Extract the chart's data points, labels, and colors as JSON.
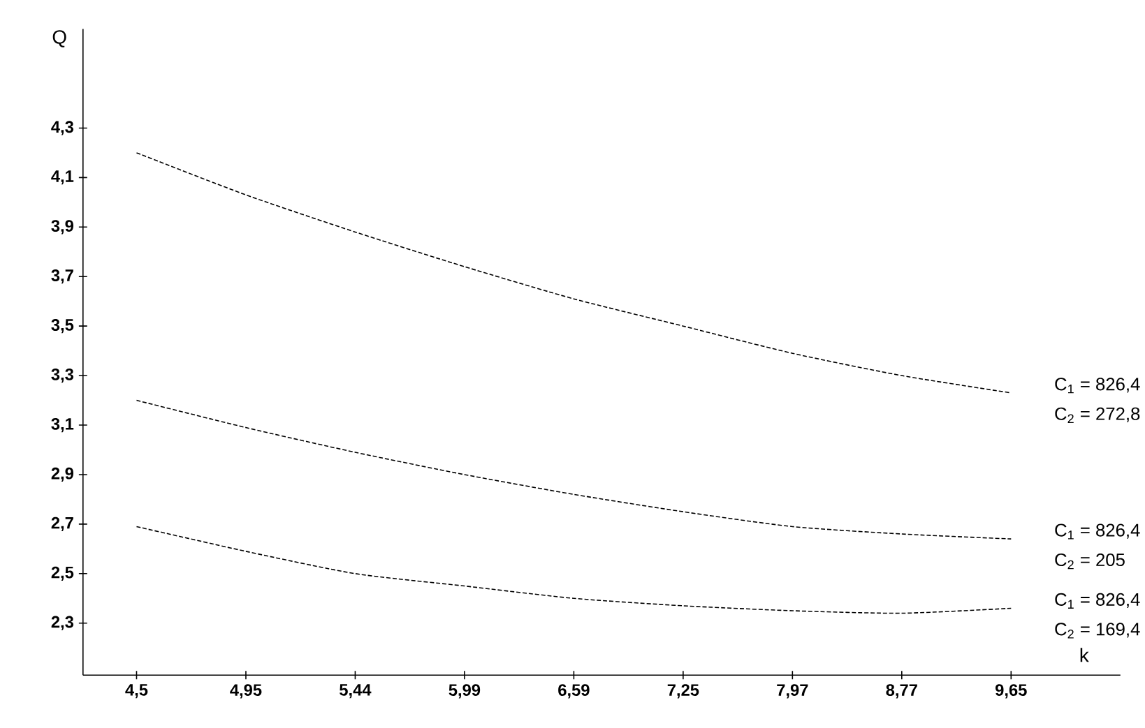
{
  "chart_data": {
    "type": "line",
    "xlabel": "k",
    "ylabel": "Q",
    "categories": [
      "4,5",
      "4,95",
      "5,44",
      "5,99",
      "6,59",
      "7,25",
      "7,97",
      "8,77",
      "9,65"
    ],
    "series": [
      {
        "color": "#000000",
        "values": [
          4.2,
          4.03,
          3.88,
          3.74,
          3.61,
          3.5,
          3.39,
          3.3,
          3.23
        ]
      },
      {
        "color": "#000000",
        "values": [
          3.2,
          3.09,
          2.99,
          2.9,
          2.82,
          2.75,
          2.69,
          2.66,
          2.64
        ]
      },
      {
        "color": "#000000",
        "values": [
          2.69,
          2.59,
          2.5,
          2.45,
          2.4,
          2.37,
          2.35,
          2.34,
          2.36
        ]
      }
    ],
    "ylim": [
      2.09,
      4.7
    ],
    "yticks": [
      {
        "value": 2.3,
        "label": "2,3"
      },
      {
        "value": 2.5,
        "label": "2,5"
      },
      {
        "value": 2.7,
        "label": "2,7"
      },
      {
        "value": 2.9,
        "label": "2,9"
      },
      {
        "value": 3.1,
        "label": "3,1"
      },
      {
        "value": 3.3,
        "label": "3,3"
      },
      {
        "value": 3.5,
        "label": "3,5"
      },
      {
        "value": 3.7,
        "label": "3,7"
      },
      {
        "value": 3.9,
        "label": "3,9"
      },
      {
        "value": 4.1,
        "label": "4,1"
      },
      {
        "value": 4.3,
        "label": "4,3"
      }
    ],
    "annotations": [
      "C$_{1}$ = 826,4",
      "C$_{2}$ = 272,8",
      "C$_{1}$ = 826,4",
      "C$_{2}$ = 205",
      "C$_{1}$ = 826,4",
      "C$_{2}$ = 169,4"
    ],
    "line_style": "dashed",
    "marker": "none",
    "grid": false
  }
}
